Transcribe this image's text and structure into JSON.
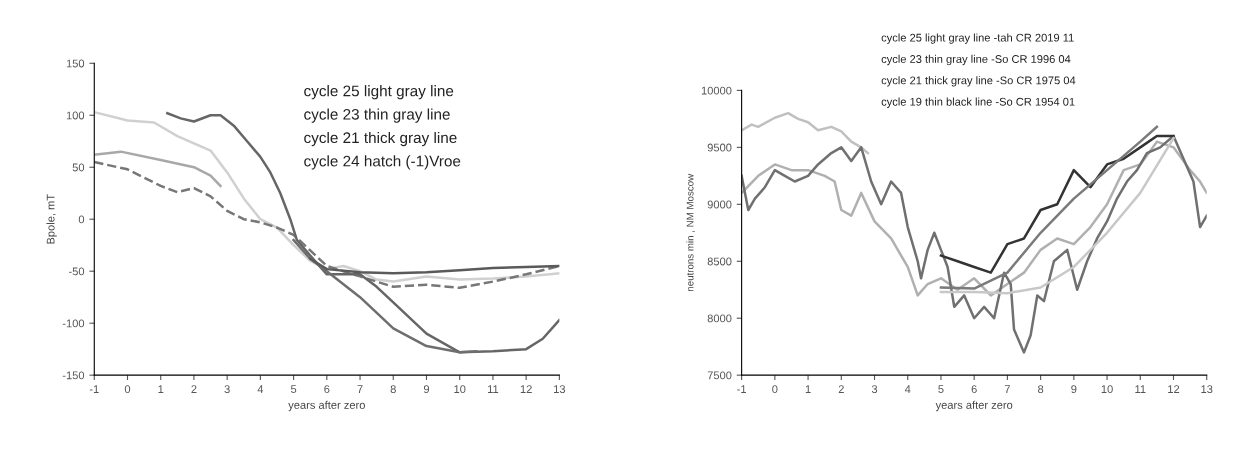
{
  "chart_data": [
    {
      "type": "line",
      "xlabel": "years after zero",
      "ylabel": "Bpole, mT",
      "xlim": [
        -1,
        13
      ],
      "ylim": [
        -150,
        150
      ],
      "xticks": [
        -1,
        0,
        1,
        2,
        3,
        4,
        5,
        6,
        7,
        8,
        9,
        10,
        11,
        12,
        13
      ],
      "yticks": [
        -150,
        -100,
        -50,
        0,
        50,
        100,
        150
      ],
      "grid": false,
      "legend": false,
      "annotations": [
        "cycle 25 light gray line",
        "cycle 23 thin gray line",
        "cycle 21 thick gray line",
        "cycle 24 hatch (-1)Vroe"
      ],
      "series": [
        {
          "color": "#d0d0d0",
          "x": [
            -1,
            0,
            0.8,
            1.5,
            2.5,
            3,
            3.5,
            4,
            4.5,
            5,
            5.5,
            6,
            6.5,
            7,
            7.5,
            8,
            9,
            10,
            11,
            12,
            13
          ],
          "values": [
            103,
            95,
            93,
            80,
            66,
            45,
            20,
            0,
            -8,
            -25,
            -40,
            -48,
            -45,
            -50,
            -58,
            -60,
            -55,
            -58,
            -57,
            -55,
            -52
          ]
        },
        {
          "color": "#a8a8a8",
          "x": [
            -1,
            -0.2,
            1,
            2,
            2.5,
            2.8
          ],
          "values": [
            62,
            65,
            57,
            50,
            42,
            32
          ]
        },
        {
          "color": "#777777",
          "line_style": "dashed",
          "x": [
            -1,
            0,
            1,
            1.5,
            2,
            2.5,
            3,
            3.5,
            4,
            4.5,
            5,
            5.5,
            6,
            7,
            8,
            9,
            10,
            11,
            12,
            13
          ],
          "values": [
            55,
            48,
            32,
            26,
            30,
            22,
            8,
            0,
            -3,
            -8,
            -15,
            -30,
            -45,
            -55,
            -65,
            -63,
            -66,
            -60,
            -53,
            -45
          ]
        },
        {
          "color": "#666666",
          "x": [
            1.2,
            1.6,
            2,
            2.5,
            2.8,
            3.2,
            3.6,
            4,
            4.3,
            4.6,
            4.9,
            5.1,
            5.5,
            6,
            7,
            7.5,
            8,
            9,
            10,
            11,
            12,
            12.5,
            13
          ],
          "values": [
            102,
            97,
            94,
            100,
            100,
            90,
            75,
            60,
            45,
            25,
            0,
            -20,
            -35,
            -53,
            -53,
            -65,
            -80,
            -110,
            -128,
            -127,
            -125,
            -115,
            -97
          ]
        },
        {
          "color": "#6e6e6e",
          "x": [
            5,
            5.5,
            6,
            7,
            8,
            9,
            10,
            10.5
          ],
          "values": [
            -20,
            -38,
            -50,
            -75,
            -105,
            -122,
            -128,
            -127
          ]
        },
        {
          "color": "#5a5a5a",
          "x": [
            5.5,
            6,
            7,
            8,
            9,
            10,
            11,
            12,
            13
          ],
          "values": [
            -38,
            -48,
            -51,
            -52,
            -51,
            -49,
            -47,
            -46,
            -45
          ]
        }
      ]
    },
    {
      "type": "line",
      "xlabel": "years after zero",
      "ylabel": "neutrons min , NM Moscow",
      "xlim": [
        -1,
        13
      ],
      "ylim": [
        7500,
        10000
      ],
      "xticks": [
        -1,
        0,
        1,
        2,
        3,
        4,
        5,
        6,
        7,
        8,
        9,
        10,
        11,
        12,
        13
      ],
      "yticks": [
        7500,
        8000,
        8500,
        9000,
        9500,
        10000
      ],
      "grid": false,
      "legend": false,
      "annotations": [
        "cycle 25 light gray line -tah CR 2019 11",
        "cycle 23 thin gray line -So CR 1996 04",
        "cycle 21 thick gray line -So CR 1975 04",
        "cycle 19 thin black line -So CR 1954 01"
      ],
      "series": [
        {
          "color": "#c0c0c0",
          "x": [
            -1,
            -0.7,
            -0.5,
            0,
            0.4,
            0.7,
            1,
            1.3,
            1.7,
            2,
            2.3,
            2.6,
            2.8
          ],
          "values": [
            9650,
            9700,
            9680,
            9760,
            9800,
            9750,
            9720,
            9650,
            9680,
            9640,
            9550,
            9500,
            9450
          ]
        },
        {
          "color": "#b0b0b0",
          "x": [
            -1,
            -0.5,
            0,
            0.5,
            1,
            1.5,
            1.8,
            2,
            2.3,
            2.6,
            3,
            3.5,
            4,
            4.3,
            4.6,
            5,
            5.5,
            6,
            6.5,
            7,
            7.5,
            8,
            8.5,
            9,
            9.5,
            10,
            10.5,
            11,
            11.5,
            12,
            12.5,
            12.8,
            13
          ],
          "values": [
            9100,
            9250,
            9350,
            9300,
            9300,
            9250,
            9200,
            8950,
            8900,
            9100,
            8850,
            8700,
            8450,
            8200,
            8300,
            8350,
            8250,
            8350,
            8200,
            8300,
            8400,
            8600,
            8700,
            8650,
            8800,
            9000,
            9300,
            9350,
            9550,
            9500,
            9300,
            9200,
            9100
          ]
        },
        {
          "color": "#707070",
          "x": [
            -1,
            -0.8,
            -0.6,
            -0.3,
            0,
            0.3,
            0.6,
            1,
            1.3,
            1.7,
            2,
            2.3,
            2.6,
            2.9,
            3.2,
            3.5,
            3.8,
            4,
            4.3,
            4.4,
            4.6,
            4.8,
            5,
            5.2,
            5.4,
            5.7,
            6,
            6.3,
            6.6,
            6.9,
            7.1,
            7.2,
            7.5,
            7.7,
            7.9,
            8.1,
            8.4,
            8.8,
            9.1,
            9.4,
            9.7,
            10,
            10.3,
            10.6,
            10.9,
            11.2,
            11.6,
            12,
            12.3,
            12.6,
            12.8,
            13
          ],
          "values": [
            9250,
            8950,
            9050,
            9150,
            9300,
            9250,
            9200,
            9250,
            9350,
            9450,
            9500,
            9380,
            9500,
            9200,
            9000,
            9200,
            9100,
            8800,
            8500,
            8350,
            8600,
            8750,
            8600,
            8450,
            8100,
            8200,
            8000,
            8100,
            8000,
            8400,
            8300,
            7900,
            7700,
            7850,
            8200,
            8150,
            8500,
            8600,
            8250,
            8500,
            8700,
            8850,
            9050,
            9200,
            9300,
            9450,
            9500,
            9600,
            9400,
            9200,
            8800,
            8900
          ]
        },
        {
          "color": "#333333",
          "x": [
            5,
            5.5,
            6,
            6.5,
            7,
            7.5,
            8,
            8.5,
            9,
            9.5,
            10,
            10.5,
            11,
            11.5,
            12
          ],
          "values": [
            8550,
            8500,
            8450,
            8400,
            8650,
            8700,
            8950,
            9000,
            9300,
            9150,
            9350,
            9400,
            9500,
            9600,
            9600
          ]
        },
        {
          "color": "#7a7a7a",
          "x": [
            5,
            6,
            7,
            8,
            9,
            10,
            11,
            11.5
          ],
          "values": [
            8270,
            8260,
            8400,
            8750,
            9050,
            9300,
            9550,
            9680
          ]
        },
        {
          "color": "#c8c8c8",
          "x": [
            5,
            6,
            7,
            8,
            9,
            10,
            11,
            12
          ],
          "values": [
            8230,
            8230,
            8220,
            8270,
            8450,
            8750,
            9100,
            9580
          ]
        }
      ]
    }
  ]
}
